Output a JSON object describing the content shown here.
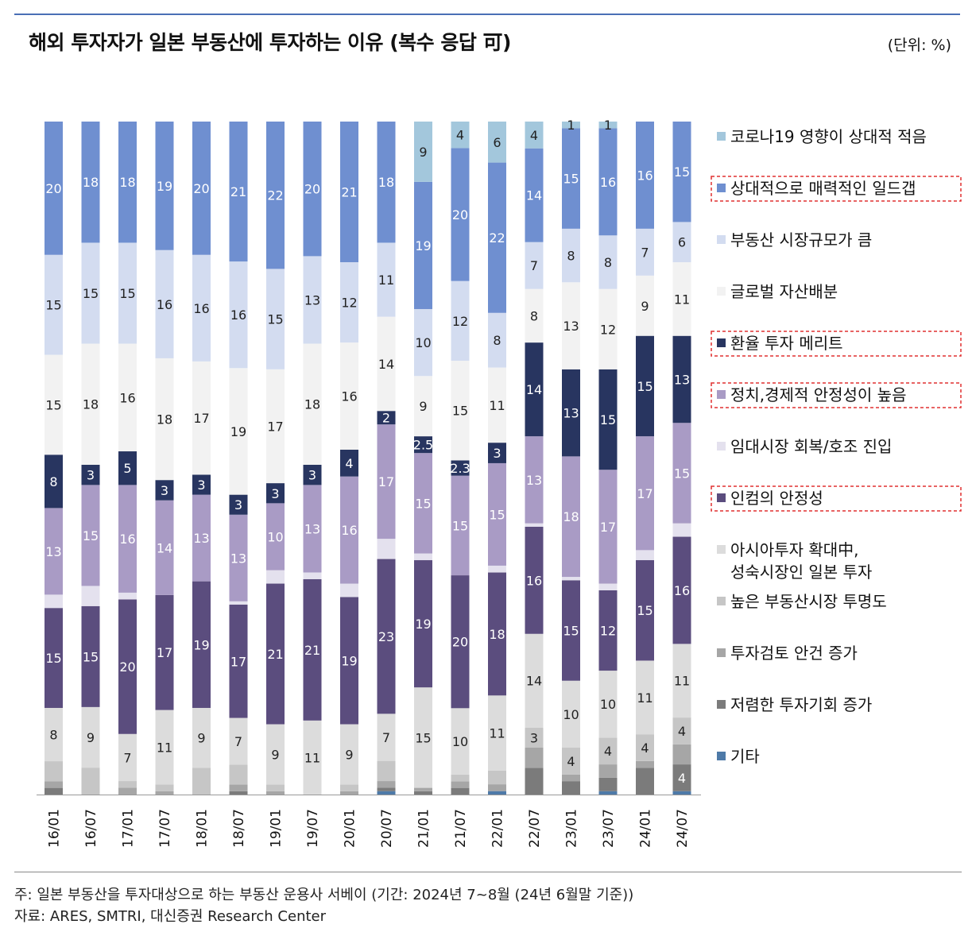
{
  "title": "해외 투자자가 일본 부동산에 투자하는 이유 (복수 응답 可)",
  "unit": "(단위: %)",
  "note": "주: 일본 부동산을 투자대상으로 하는 부동산 운용사 서베이 (기간: 2024년 7~8월 (24년 6월말 기준))",
  "source": "자료: ARES, SMTRI, 대신증권 Research Center",
  "chart_data": {
    "type": "bar",
    "stacked": true,
    "normalized": true,
    "categories": [
      "16/01",
      "16/07",
      "17/01",
      "17/07",
      "18/01",
      "18/07",
      "19/01",
      "19/07",
      "20/01",
      "20/07",
      "21/01",
      "21/07",
      "22/01",
      "22/07",
      "23/01",
      "23/07",
      "24/01",
      "24/07"
    ],
    "series": [
      {
        "name": "기타",
        "color": "#4e7aa8",
        "values": [
          0,
          0,
          0,
          0,
          0,
          0,
          0,
          0,
          0,
          0.5,
          0,
          0,
          0.5,
          0,
          0,
          0.5,
          0,
          0.5
        ]
      },
      {
        "name": "저렴한 투자기회 증가",
        "color": "#7b7b7b",
        "values": [
          1,
          0,
          0,
          0,
          0,
          0.5,
          0,
          0,
          0,
          0.5,
          0.5,
          1,
          0,
          4,
          2,
          2,
          4,
          4
        ]
      },
      {
        "name": "투자검토 안건 증가",
        "color": "#a6a6a6",
        "values": [
          1,
          0,
          1,
          0.5,
          0,
          1,
          0.5,
          0,
          0.5,
          1,
          0.5,
          1,
          1,
          3,
          1,
          2,
          1,
          3
        ]
      },
      {
        "name": "높은 부동산시장 투명도",
        "color": "#c6c6c6",
        "values": [
          3,
          4,
          1,
          1,
          4,
          3,
          1,
          0,
          1,
          3,
          0,
          1,
          2,
          3,
          4,
          4,
          4,
          4
        ]
      },
      {
        "name": "아시아투자 확대中, 성숙시장인 일본 투자",
        "color": "#dcdcdc",
        "values": [
          8,
          9,
          7,
          11,
          9,
          7,
          9,
          11,
          9,
          7,
          15,
          10,
          11,
          14,
          10,
          10,
          11,
          11
        ]
      },
      {
        "name": "인컴의 안정성",
        "color": "#5b4d7e",
        "values": [
          15,
          15,
          20,
          17,
          19,
          17,
          21,
          21,
          19,
          23,
          19,
          20,
          18,
          16,
          15,
          12,
          15,
          16
        ]
      },
      {
        "name": "임대시장 회복/호조 진입",
        "color": "#e4e1ee",
        "values": [
          2,
          3,
          1,
          0,
          0,
          0.5,
          2,
          1,
          2,
          3,
          1,
          0,
          1,
          0.5,
          0.5,
          1,
          1.5,
          2
        ]
      },
      {
        "name": "정치,경제적 안정성이 높음",
        "color": "#a99bc5",
        "values": [
          13,
          15,
          16,
          14,
          13,
          13,
          10,
          13,
          16,
          17,
          15,
          15,
          15,
          13,
          18,
          17,
          17,
          15
        ]
      },
      {
        "name": "환율 투자 메리트",
        "color": "#283560",
        "values": [
          8,
          3,
          5,
          3,
          3,
          3,
          3,
          3,
          4,
          2,
          2.5,
          2.3,
          3,
          14,
          13,
          15,
          15,
          13
        ]
      },
      {
        "name": "글로벌 자산배분",
        "color": "#f2f2f2",
        "values": [
          15,
          18,
          16,
          18,
          17,
          19,
          17,
          18,
          16,
          14,
          9,
          15,
          11,
          8,
          13,
          12,
          9,
          11
        ]
      },
      {
        "name": "부동산 시장규모가 큼",
        "color": "#d3dcf0",
        "values": [
          15,
          15,
          15,
          16,
          16,
          16,
          15,
          13,
          12,
          11,
          10,
          12,
          8,
          7,
          8,
          8,
          7,
          6
        ]
      },
      {
        "name": "상대적으로 매력적인 일드갭",
        "color": "#6f8fd0",
        "values": [
          20,
          18,
          18,
          19,
          20,
          21,
          22,
          20,
          21,
          18,
          19,
          20,
          22,
          14,
          15,
          16,
          16,
          15
        ]
      },
      {
        "name": "코로나19 영향이 상대적 적음",
        "color": "#a3c7dc",
        "values": [
          0,
          0,
          0,
          0,
          0,
          0,
          0,
          0,
          0,
          0,
          9,
          4,
          6,
          4,
          1,
          1,
          0,
          0
        ]
      }
    ],
    "data_labels": {
      "저렴한 투자기회 증가": [
        null,
        null,
        null,
        null,
        null,
        null,
        null,
        null,
        null,
        null,
        null,
        null,
        null,
        null,
        null,
        null,
        null,
        "4"
      ],
      "높은 부동산시장 투명도": [
        null,
        null,
        null,
        null,
        null,
        null,
        null,
        null,
        null,
        null,
        null,
        null,
        null,
        "3",
        "4",
        "4",
        "4",
        "4"
      ],
      "아시아투자 확대中, 성숙시장인 일본 투자": [
        "8",
        "9",
        "7",
        "11",
        "9",
        "7",
        "9",
        "11",
        "9",
        "7",
        "15",
        "10",
        "11",
        "14",
        "10",
        "10",
        "11",
        "11"
      ],
      "인컴의 안정성": [
        "15",
        "15",
        "20",
        "17",
        "19",
        "17",
        "21",
        "21",
        "19",
        "23",
        "19",
        "20",
        "18",
        "16",
        "15",
        "12",
        "15",
        "16"
      ],
      "정치,경제적 안정성이 높음": [
        "13",
        "15",
        "16",
        "14",
        "13",
        "13",
        "10",
        "13",
        "16",
        "17",
        "15",
        "15",
        "15",
        "13",
        "18",
        "17",
        "17",
        "15"
      ],
      "환율 투자 메리트": [
        "8",
        "3",
        "5",
        "3",
        "3",
        "3",
        "3",
        "3",
        "4",
        "2",
        "2.5",
        "2.3",
        "3",
        "14",
        "13",
        "15",
        "15",
        "13"
      ],
      "글로벌 자산배분": [
        "15",
        "18",
        "16",
        "18",
        "17",
        "19",
        "17",
        "18",
        "16",
        "14",
        "9",
        "15",
        "11",
        "8",
        "13",
        "12",
        "9",
        "11"
      ],
      "부동산 시장규모가 큼": [
        "15",
        "15",
        "15",
        "16",
        "16",
        "16",
        "15",
        "13",
        "12",
        "11",
        "10",
        "12",
        "8",
        "7",
        "8",
        "8",
        "7",
        "6"
      ],
      "상대적으로 매력적인 일드갭": [
        "20",
        "18",
        "18",
        "19",
        "20",
        "21",
        "22",
        "20",
        "21",
        "18",
        "19",
        "20",
        "22",
        "14",
        "15",
        "16",
        "16",
        "15"
      ],
      "코로나19 영향이 상대적 적음": [
        null,
        null,
        null,
        null,
        null,
        null,
        null,
        null,
        null,
        null,
        "9",
        "4",
        "6",
        "4",
        "1",
        "1",
        null,
        null
      ]
    },
    "legend": [
      {
        "label": "코로나19 영향이 상대적 적음",
        "color": "#a3c7dc",
        "highlighted": false
      },
      {
        "label": "상대적으로 매력적인 일드갭",
        "color": "#6f8fd0",
        "highlighted": true
      },
      {
        "label": "부동산 시장규모가 큼",
        "color": "#d3dcf0",
        "highlighted": false
      },
      {
        "label": "글로벌 자산배분",
        "color": "#f2f2f2",
        "highlighted": false
      },
      {
        "label": "환율 투자 메리트",
        "color": "#283560",
        "highlighted": true
      },
      {
        "label": "정치,경제적 안정성이 높음",
        "color": "#a99bc5",
        "highlighted": true
      },
      {
        "label": "임대시장 회복/호조 진입",
        "color": "#e4e1ee",
        "highlighted": false
      },
      {
        "label": "인컴의 안정성",
        "color": "#5b4d7e",
        "highlighted": true
      },
      {
        "label": "아시아투자 확대中,",
        "label2": "성숙시장인 일본 투자",
        "color": "#dcdcdc",
        "highlighted": false
      },
      {
        "label": "높은 부동산시장 투명도",
        "color": "#c6c6c6",
        "highlighted": false
      },
      {
        "label": "투자검토 안건 증가",
        "color": "#a6a6a6",
        "highlighted": false
      },
      {
        "label": "저렴한 투자기회 증가",
        "color": "#7b7b7b",
        "highlighted": false
      },
      {
        "label": "기타",
        "color": "#4e7aa8",
        "highlighted": false
      }
    ],
    "legend_position": "right",
    "grid": false
  }
}
